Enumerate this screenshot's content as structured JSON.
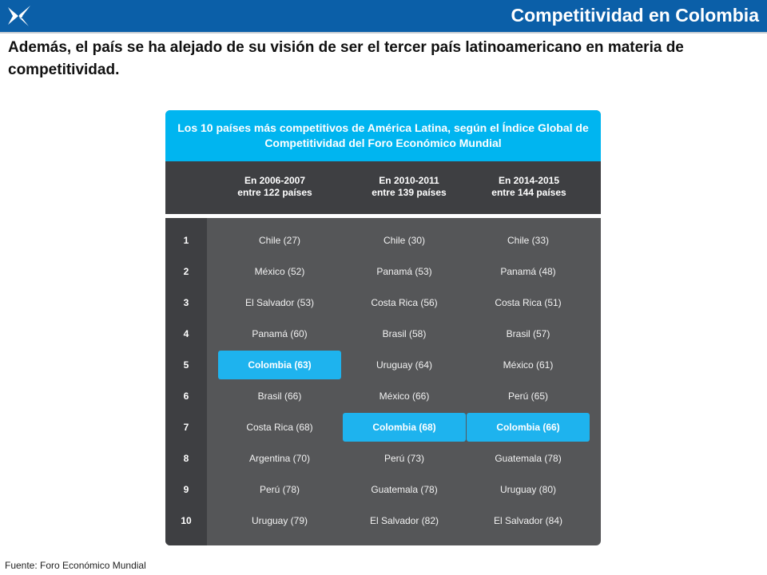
{
  "header": {
    "title": "Competitividad en Colombia",
    "brand_color": "#0b5fa8"
  },
  "intro_text": "Además, el país se ha alejado de su visión de ser el tercer país latinoamericano en materia de competitividad.",
  "table": {
    "title": "Los 10 países más competitivos de América Latina, según el Índice Global de Competitividad del Foro Económico Mundial",
    "columns": [
      {
        "period": "En 2006-2007",
        "subtitle": "entre 122 países"
      },
      {
        "period": "En 2010-2011",
        "subtitle": "entre 139 países"
      },
      {
        "period": "En 2014-2015",
        "subtitle": "entre 144 países"
      }
    ],
    "ranks": [
      "1",
      "2",
      "3",
      "4",
      "5",
      "6",
      "7",
      "8",
      "9",
      "10"
    ],
    "rows": [
      [
        "Chile (27)",
        "Chile (30)",
        "Chile (33)"
      ],
      [
        "México (52)",
        "Panamá (53)",
        "Panamá (48)"
      ],
      [
        "El Salvador (53)",
        "Costa Rica (56)",
        "Costa Rica (51)"
      ],
      [
        "Panamá (60)",
        "Brasil (58)",
        "Brasil (57)"
      ],
      [
        "Colombia (63)",
        "Uruguay (64)",
        "México (61)"
      ],
      [
        "Brasil (66)",
        "México (66)",
        "Perú (65)"
      ],
      [
        "Costa Rica (68)",
        "Colombia (68)",
        "Colombia (66)"
      ],
      [
        "Argentina (70)",
        "Perú (73)",
        "Guatemala (78)"
      ],
      [
        "Perú (78)",
        "Guatemala (78)",
        "Uruguay (80)"
      ],
      [
        "Uruguay (79)",
        "El Salvador (82)",
        "El Salvador (84)"
      ]
    ],
    "highlight_label": "Colombia",
    "highlight_color": "#1eb3ee",
    "header_color": "#00b5f0"
  },
  "source": "Fuente: Foro Económico Mundial"
}
